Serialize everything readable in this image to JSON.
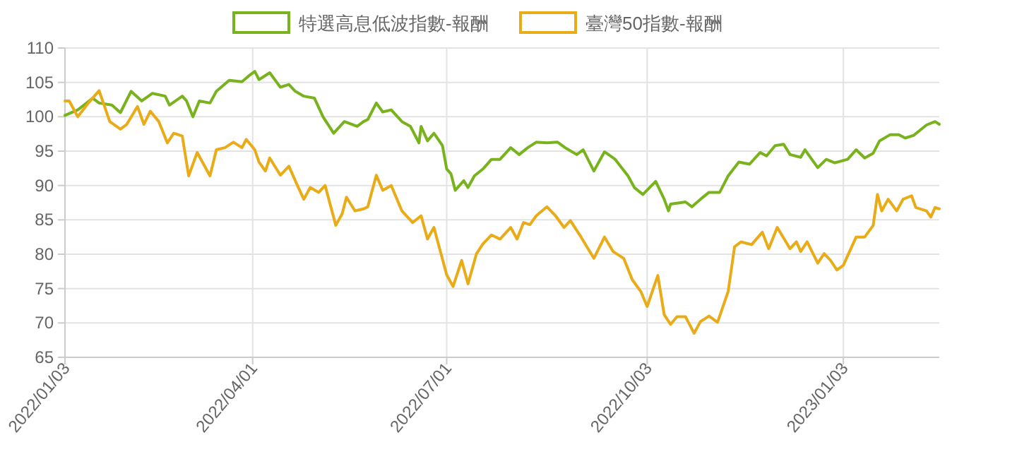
{
  "chart_data": {
    "type": "line",
    "xlim": [
      "2022-01-03",
      "2023-02-17"
    ],
    "ylim": [
      65,
      110
    ],
    "yticks": [
      65,
      70,
      75,
      80,
      85,
      90,
      95,
      100,
      105,
      110
    ],
    "xticks": [
      {
        "value": "2022-01-03",
        "label": "2022/01/03"
      },
      {
        "value": "2022-04-01",
        "label": "2022/04/01"
      },
      {
        "value": "2022-07-01",
        "label": "2022/07/01"
      },
      {
        "value": "2022-10-03",
        "label": "2022/10/03"
      },
      {
        "value": "2023-01-03",
        "label": "2023/01/03"
      }
    ],
    "grid": true,
    "legend": "top",
    "marker": "none",
    "line_style": "solid",
    "series": [
      {
        "name": "特選高息低波指數-報酬",
        "color": "#78b21c",
        "x": [
          "2022-01-03",
          "2022-01-09",
          "2022-01-16",
          "2022-01-19",
          "2022-01-25",
          "2022-01-29",
          "2022-02-03",
          "2022-02-08",
          "2022-02-13",
          "2022-02-19",
          "2022-02-21",
          "2022-02-27",
          "2022-03-01",
          "2022-03-04",
          "2022-03-07",
          "2022-03-12",
          "2022-03-15",
          "2022-03-21",
          "2022-03-27",
          "2022-03-30",
          "2022-04-02",
          "2022-04-04",
          "2022-04-09",
          "2022-04-14",
          "2022-04-18",
          "2022-04-21",
          "2022-04-25",
          "2022-04-30",
          "2022-05-04",
          "2022-05-09",
          "2022-05-14",
          "2022-05-20",
          "2022-05-23",
          "2022-05-25",
          "2022-05-29",
          "2022-06-01",
          "2022-06-05",
          "2022-06-10",
          "2022-06-14",
          "2022-06-18",
          "2022-06-19",
          "2022-06-22",
          "2022-06-25",
          "2022-06-29",
          "2022-07-01",
          "2022-07-03",
          "2022-07-05",
          "2022-07-09",
          "2022-07-11",
          "2022-07-14",
          "2022-07-18",
          "2022-07-22",
          "2022-07-26",
          "2022-07-31",
          "2022-08-04",
          "2022-08-08",
          "2022-08-12",
          "2022-08-17",
          "2022-08-22",
          "2022-08-26",
          "2022-08-31",
          "2022-09-03",
          "2022-09-08",
          "2022-09-13",
          "2022-09-18",
          "2022-09-24",
          "2022-09-27",
          "2022-10-01",
          "2022-10-07",
          "2022-10-11",
          "2022-10-13",
          "2022-10-14",
          "2022-10-21",
          "2022-10-24",
          "2022-10-28",
          "2022-11-01",
          "2022-11-06",
          "2022-11-10",
          "2022-11-15",
          "2022-11-20",
          "2022-11-25",
          "2022-11-28",
          "2022-12-02",
          "2022-12-06",
          "2022-12-09",
          "2022-12-14",
          "2022-12-16",
          "2022-12-22",
          "2022-12-26",
          "2022-12-30",
          "2023-01-05",
          "2023-01-09",
          "2023-01-13",
          "2023-01-17",
          "2023-01-20",
          "2023-01-25",
          "2023-01-29",
          "2023-02-01",
          "2023-02-05",
          "2023-02-11",
          "2023-02-15",
          "2023-02-17"
        ],
        "values": [
          100.2,
          101,
          102.7,
          102,
          101.7,
          100.6,
          103.7,
          102.3,
          103.4,
          103,
          101.7,
          103,
          102.3,
          100,
          102.3,
          102,
          103.7,
          105.3,
          105.1,
          105.9,
          106.6,
          105.4,
          106.4,
          104.3,
          104.7,
          103.7,
          103,
          102.7,
          100,
          97.6,
          99.3,
          98.6,
          99.3,
          99.6,
          102,
          100.7,
          101,
          99.3,
          98.6,
          96.2,
          98.6,
          96.5,
          97.6,
          95.8,
          92.4,
          91.7,
          89.3,
          90.7,
          89.7,
          91.4,
          92.4,
          93.8,
          93.8,
          95.5,
          94.5,
          95.5,
          96.3,
          96.2,
          96.3,
          95.4,
          94.5,
          95.2,
          92.1,
          94.9,
          93.8,
          91.4,
          89.7,
          88.7,
          90.6,
          88,
          86.3,
          87.3,
          87.6,
          86.9,
          88,
          89,
          89,
          91.4,
          93.4,
          93.1,
          94.8,
          94.3,
          95.8,
          96,
          94.5,
          94.1,
          95.2,
          92.6,
          93.8,
          93.3,
          93.8,
          95.2,
          94,
          94.7,
          96.5,
          97.4,
          97.4,
          96.9,
          97.3,
          98.8,
          99.3,
          98.9
        ]
      },
      {
        "name": "臺灣50指數-報酬",
        "color": "#e9ab17",
        "x": [
          "2022-01-03",
          "2022-01-05",
          "2022-01-09",
          "2022-01-14",
          "2022-01-19",
          "2022-01-21",
          "2022-01-24",
          "2022-01-29",
          "2022-02-01",
          "2022-02-06",
          "2022-02-09",
          "2022-02-12",
          "2022-02-16",
          "2022-02-20",
          "2022-02-23",
          "2022-02-27",
          "2022-03-02",
          "2022-03-06",
          "2022-03-12",
          "2022-03-15",
          "2022-03-19",
          "2022-03-23",
          "2022-03-27",
          "2022-03-29",
          "2022-04-02",
          "2022-04-04",
          "2022-04-07",
          "2022-04-09",
          "2022-04-14",
          "2022-04-18",
          "2022-04-22",
          "2022-04-25",
          "2022-04-28",
          "2022-05-02",
          "2022-05-05",
          "2022-05-10",
          "2022-05-13",
          "2022-05-15",
          "2022-05-19",
          "2022-05-23",
          "2022-05-25",
          "2022-05-29",
          "2022-06-01",
          "2022-06-05",
          "2022-06-10",
          "2022-06-15",
          "2022-06-19",
          "2022-06-22",
          "2022-06-25",
          "2022-07-01",
          "2022-07-04",
          "2022-07-08",
          "2022-07-11",
          "2022-07-15",
          "2022-07-18",
          "2022-07-22",
          "2022-07-26",
          "2022-07-31",
          "2022-08-03",
          "2022-08-06",
          "2022-08-09",
          "2022-08-12",
          "2022-08-17",
          "2022-08-21",
          "2022-08-25",
          "2022-08-28",
          "2022-09-02",
          "2022-09-08",
          "2022-09-13",
          "2022-09-17",
          "2022-09-22",
          "2022-09-26",
          "2022-09-30",
          "2022-10-03",
          "2022-10-08",
          "2022-10-11",
          "2022-10-14",
          "2022-10-17",
          "2022-10-21",
          "2022-10-25",
          "2022-10-28",
          "2022-11-01",
          "2022-11-05",
          "2022-11-10",
          "2022-11-13",
          "2022-11-16",
          "2022-11-21",
          "2022-11-26",
          "2022-11-29",
          "2022-12-03",
          "2022-12-09",
          "2022-12-12",
          "2022-12-14",
          "2022-12-17",
          "2022-12-22",
          "2022-12-25",
          "2022-12-28",
          "2022-12-31",
          "2023-01-03",
          "2023-01-09",
          "2023-01-13",
          "2023-01-17",
          "2023-01-19",
          "2023-01-21",
          "2023-01-24",
          "2023-01-28",
          "2023-01-31",
          "2023-02-04",
          "2023-02-06",
          "2023-02-11",
          "2023-02-13",
          "2023-02-15",
          "2023-02-17"
        ],
        "values": [
          102.3,
          102.3,
          100,
          102,
          103.8,
          102,
          99.3,
          98.2,
          98.9,
          101.5,
          98.9,
          100.8,
          99.3,
          96.2,
          97.6,
          97.2,
          91.4,
          94.8,
          91.4,
          95.2,
          95.5,
          96.3,
          95.5,
          96.7,
          95.2,
          93.4,
          92.1,
          94,
          91.5,
          92.8,
          90,
          88,
          89.7,
          89,
          90,
          84.2,
          85.9,
          88.3,
          86.3,
          86.6,
          86.9,
          91.5,
          89.3,
          90,
          86.3,
          84.6,
          85.6,
          82.2,
          83.9,
          77,
          75.3,
          79.1,
          75.7,
          80.1,
          81.5,
          82.8,
          82.2,
          83.9,
          82.2,
          84.6,
          84.3,
          85.6,
          86.9,
          85.6,
          83.9,
          84.9,
          82.5,
          79.4,
          82.5,
          80.4,
          79.4,
          76.3,
          74.6,
          72.4,
          76.9,
          71.2,
          69.8,
          70.9,
          70.9,
          68.5,
          70.2,
          71,
          70.1,
          74.6,
          81.1,
          81.8,
          81.4,
          83.2,
          80.8,
          83.9,
          80.8,
          81.8,
          80.4,
          81.8,
          78.7,
          80.1,
          79.1,
          77.7,
          78.4,
          82.5,
          82.5,
          84.2,
          88.7,
          86.3,
          88,
          86.3,
          88,
          88.5,
          86.8,
          86.3,
          85.4,
          86.8,
          86.6
        ]
      }
    ]
  }
}
